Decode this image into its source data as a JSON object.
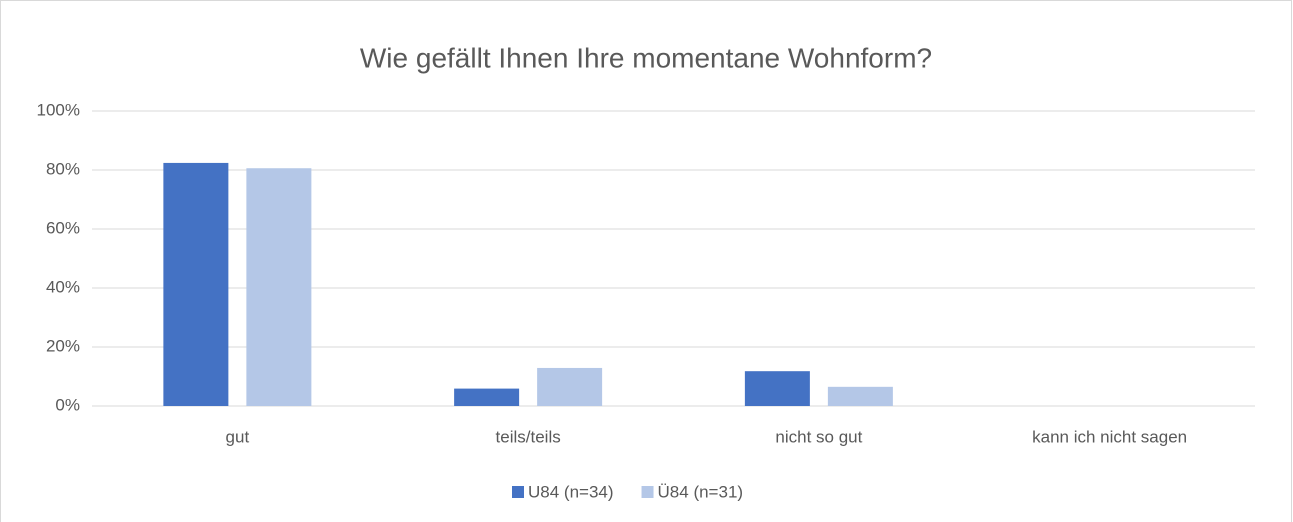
{
  "chart_data": {
    "type": "bar",
    "title": "Wie gefällt Ihnen Ihre momentane Wohnform?",
    "categories": [
      "gut",
      "teils/teils",
      "nicht so gut",
      "kann ich nicht sagen"
    ],
    "series": [
      {
        "name": "U84 (n=34)",
        "color": "#4472c4",
        "values": [
          82.4,
          5.9,
          11.8,
          0
        ]
      },
      {
        "name": "Ü84 (n=31)",
        "color": "#b4c7e7",
        "values": [
          80.6,
          12.9,
          6.5,
          0
        ]
      }
    ],
    "ylim": [
      0,
      100
    ],
    "yticks": [
      {
        "value": 0,
        "label": "0%"
      },
      {
        "value": 20,
        "label": "20%"
      },
      {
        "value": 40,
        "label": "40%"
      },
      {
        "value": 60,
        "label": "60%"
      },
      {
        "value": 80,
        "label": "80%"
      },
      {
        "value": 100,
        "label": "100%"
      }
    ],
    "grid": true,
    "legend": "bottom"
  }
}
